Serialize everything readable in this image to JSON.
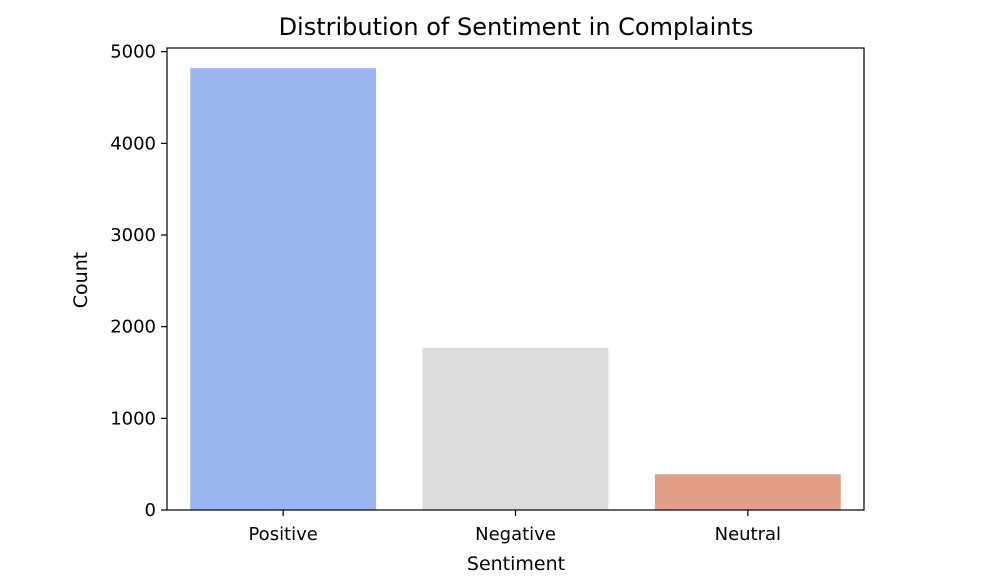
{
  "chart_data": {
    "type": "bar",
    "title": "Distribution of Sentiment in Complaints",
    "xlabel": "Sentiment",
    "ylabel": "Count",
    "categories": [
      "Positive",
      "Negative",
      "Neutral"
    ],
    "values": [
      4820,
      1770,
      390
    ],
    "colors": [
      "#9bb5f1",
      "#dcdcdc",
      "#e19f87"
    ],
    "ylim": [
      0,
      5040
    ],
    "yticks": [
      0,
      1000,
      2000,
      3000,
      4000,
      5000
    ],
    "grid": false,
    "legend": "none"
  }
}
